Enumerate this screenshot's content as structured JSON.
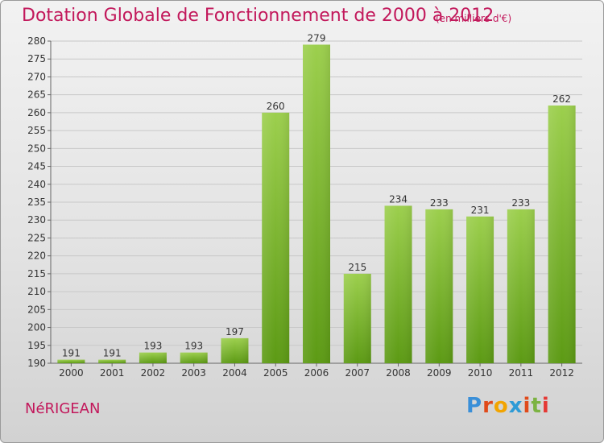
{
  "title": "Dotation Globale de Fonctionnement de 2000 à 2012",
  "subtitle": "(en milliers d'€)",
  "place_name": "NéRIGEAN",
  "logo": {
    "text": "Proxiti",
    "colors": [
      "#3a8fd8",
      "#e04a1a",
      "#f2a400",
      "#2e9bd6",
      "#e04a1a",
      "#7cb342",
      "#e53935"
    ]
  },
  "colors": {
    "bar": "#7cb82f",
    "title": "#c2185b"
  },
  "chart_data": {
    "type": "bar",
    "title": "Dotation Globale de Fonctionnement de 2000 à 2012",
    "subtitle": "(en milliers d'€)",
    "categories": [
      "2000",
      "2001",
      "2002",
      "2003",
      "2004",
      "2005",
      "2006",
      "2007",
      "2008",
      "2009",
      "2010",
      "2011",
      "2012"
    ],
    "values": [
      191,
      191,
      193,
      193,
      197,
      260,
      279,
      215,
      234,
      233,
      231,
      233,
      262
    ],
    "ylim": [
      190,
      280
    ],
    "yticks": [
      190,
      195,
      200,
      205,
      210,
      215,
      220,
      225,
      230,
      235,
      240,
      245,
      250,
      255,
      260,
      265,
      270,
      275,
      280
    ],
    "grid": true,
    "data_labels": true
  }
}
